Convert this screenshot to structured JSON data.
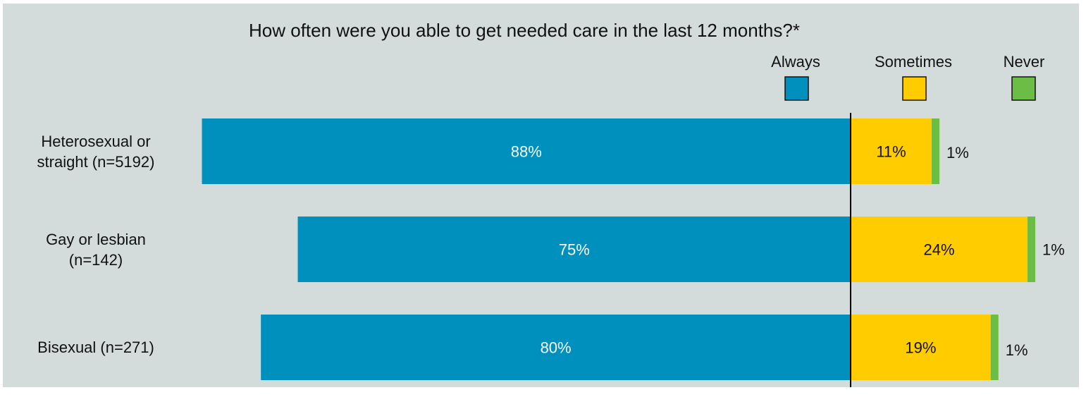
{
  "chart_data": {
    "type": "bar",
    "orientation": "horizontal",
    "stacked": "diverging",
    "title": "How often were you able to get needed care in the last 12 months?*",
    "categories": [
      "Heterosexual or straight (n=5192)",
      "Gay or lesbian (n=142)",
      "Bisexual (n=271)"
    ],
    "category_lines": [
      [
        "Heterosexual or",
        "straight (n=5192)"
      ],
      [
        "Gay or lesbian",
        "(n=142)"
      ],
      [
        "Bisexual (n=271)"
      ]
    ],
    "series": [
      {
        "name": "Always",
        "color": "#0090bd",
        "values": [
          88,
          75,
          80
        ],
        "labels": [
          "88%",
          "75%",
          "80%"
        ]
      },
      {
        "name": "Sometimes",
        "color": "#ffcc00",
        "values": [
          11,
          24,
          19
        ],
        "labels": [
          "11%",
          "24%",
          "19%"
        ]
      },
      {
        "name": "Never",
        "color": "#6cbd45",
        "values": [
          1,
          1,
          1
        ],
        "labels": [
          "1%",
          "1%",
          "1%"
        ]
      }
    ],
    "unit": "%",
    "legend_position": "top-right",
    "grid": false
  },
  "colors": {
    "background": "#d3dcdb",
    "text": "#111111",
    "divider": "#000000"
  }
}
